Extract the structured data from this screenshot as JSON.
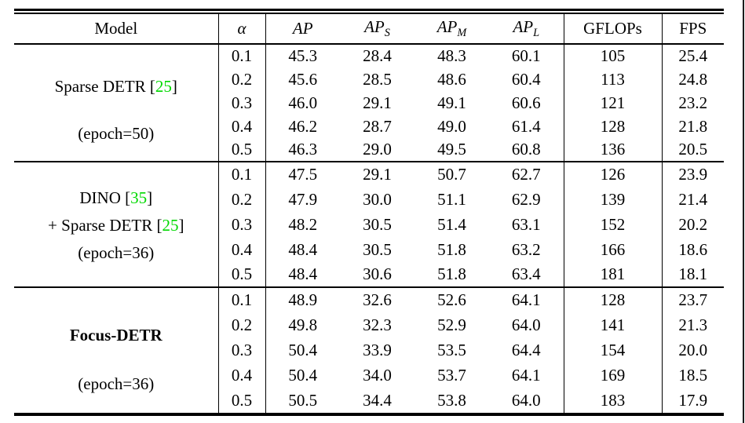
{
  "colors": {
    "background": "#ffffff",
    "text": "#000000",
    "rule": "#000000",
    "citation_green": "#00d800"
  },
  "table": {
    "headers": {
      "model": "Model",
      "alpha": "α",
      "ap": "AP",
      "ap_s_base": "AP",
      "ap_s_sub": "S",
      "ap_m_base": "AP",
      "ap_m_sub": "M",
      "ap_l_base": "AP",
      "ap_l_sub": "L",
      "gflops": "GFLOPs",
      "fps": "FPS"
    },
    "groups": [
      {
        "bold": false,
        "model_lines": [
          {
            "name_line": true,
            "segments": [
              {
                "text": "Sparse DETR ["
              },
              {
                "text": "25",
                "green": true
              },
              {
                "text": "]"
              }
            ]
          },
          {
            "name_line": false,
            "segments": [
              {
                "text": "(epoch=50)"
              }
            ]
          }
        ],
        "rows": [
          {
            "alpha": "0.1",
            "ap": "45.3",
            "ap_s": "28.4",
            "ap_m": "48.3",
            "ap_l": "60.1",
            "gflops": "105",
            "fps": "25.4"
          },
          {
            "alpha": "0.2",
            "ap": "45.6",
            "ap_s": "28.5",
            "ap_m": "48.6",
            "ap_l": "60.4",
            "gflops": "113",
            "fps": "24.8"
          },
          {
            "alpha": "0.3",
            "ap": "46.0",
            "ap_s": "29.1",
            "ap_m": "49.1",
            "ap_l": "60.6",
            "gflops": "121",
            "fps": "23.2"
          },
          {
            "alpha": "0.4",
            "ap": "46.2",
            "ap_s": "28.7",
            "ap_m": "49.0",
            "ap_l": "61.4",
            "gflops": "128",
            "fps": "21.8"
          },
          {
            "alpha": "0.5",
            "ap": "46.3",
            "ap_s": "29.0",
            "ap_m": "49.5",
            "ap_l": "60.8",
            "gflops": "136",
            "fps": "20.5"
          }
        ]
      },
      {
        "bold": false,
        "model_lines": [
          {
            "name_line": true,
            "segments": [
              {
                "text": "DINO ["
              },
              {
                "text": "35",
                "green": true
              },
              {
                "text": "]"
              }
            ]
          },
          {
            "name_line": true,
            "segments": [
              {
                "text": "+ Sparse DETR ["
              },
              {
                "text": "25",
                "green": true
              },
              {
                "text": "]"
              }
            ]
          },
          {
            "name_line": false,
            "segments": [
              {
                "text": "(epoch=36)"
              }
            ]
          }
        ],
        "rows": [
          {
            "alpha": "0.1",
            "ap": "47.5",
            "ap_s": "29.1",
            "ap_m": "50.7",
            "ap_l": "62.7",
            "gflops": "126",
            "fps": "23.9"
          },
          {
            "alpha": "0.2",
            "ap": "47.9",
            "ap_s": "30.0",
            "ap_m": "51.1",
            "ap_l": "62.9",
            "gflops": "139",
            "fps": "21.4"
          },
          {
            "alpha": "0.3",
            "ap": "48.2",
            "ap_s": "30.5",
            "ap_m": "51.4",
            "ap_l": "63.1",
            "gflops": "152",
            "fps": "20.2"
          },
          {
            "alpha": "0.4",
            "ap": "48.4",
            "ap_s": "30.5",
            "ap_m": "51.8",
            "ap_l": "63.2",
            "gflops": "166",
            "fps": "18.6"
          },
          {
            "alpha": "0.5",
            "ap": "48.4",
            "ap_s": "30.6",
            "ap_m": "51.8",
            "ap_l": "63.4",
            "gflops": "181",
            "fps": "18.1"
          }
        ]
      },
      {
        "bold": true,
        "model_lines": [
          {
            "name_line": true,
            "segments": [
              {
                "text": "Focus-DETR"
              }
            ]
          },
          {
            "name_line": false,
            "segments": [
              {
                "text": "(epoch=36)"
              }
            ]
          }
        ],
        "rows": [
          {
            "alpha": "0.1",
            "ap": "48.9",
            "ap_s": "32.6",
            "ap_m": "52.6",
            "ap_l": "64.1",
            "gflops": "128",
            "fps": "23.7"
          },
          {
            "alpha": "0.2",
            "ap": "49.8",
            "ap_s": "32.3",
            "ap_m": "52.9",
            "ap_l": "64.0",
            "gflops": "141",
            "fps": "21.3"
          },
          {
            "alpha": "0.3",
            "ap": "50.4",
            "ap_s": "33.9",
            "ap_m": "53.5",
            "ap_l": "64.4",
            "gflops": "154",
            "fps": "20.0"
          },
          {
            "alpha": "0.4",
            "ap": "50.4",
            "ap_s": "34.0",
            "ap_m": "53.7",
            "ap_l": "64.1",
            "gflops": "169",
            "fps": "18.5"
          },
          {
            "alpha": "0.5",
            "ap": "50.5",
            "ap_s": "34.4",
            "ap_m": "53.8",
            "ap_l": "64.0",
            "gflops": "183",
            "fps": "17.9"
          }
        ]
      }
    ]
  }
}
